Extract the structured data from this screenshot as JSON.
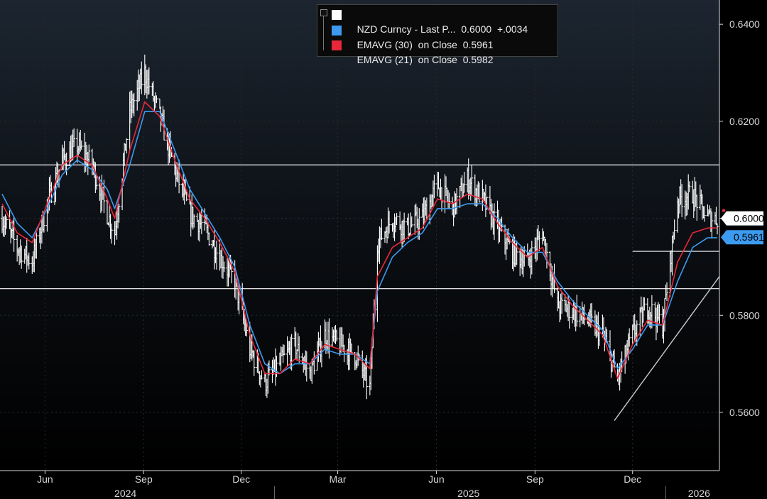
{
  "chart_data": {
    "type": "line",
    "title": "",
    "xlabel": "",
    "ylabel": "",
    "ylim": [
      0.548,
      0.645
    ],
    "yticks": [
      0.56,
      0.58,
      0.6,
      0.62,
      0.64
    ],
    "ytick_labels": [
      "0.5600",
      "0.5800",
      "0.6000",
      "0.6200",
      "0.6400"
    ],
    "x_axis": {
      "months": [
        {
          "label": "Jun",
          "date": "2024-06-01"
        },
        {
          "label": "Sep",
          "date": "2024-09-01"
        },
        {
          "label": "Dec",
          "date": "2024-12-01"
        },
        {
          "label": "Mar",
          "date": "2025-03-01"
        },
        {
          "label": "Jun",
          "date": "2025-06-01"
        },
        {
          "label": "Sep",
          "date": "2025-09-01"
        },
        {
          "label": "Dec",
          "date": "2025-12-01"
        }
      ],
      "years": [
        {
          "label": "2024",
          "date": "2024-08-15"
        },
        {
          "label": "2025",
          "date": "2025-07-01"
        },
        {
          "label": "2026",
          "date": "2026-02-01"
        }
      ],
      "range": [
        "2024-04-20",
        "2026-02-20"
      ]
    },
    "series": [
      {
        "name": "NZD Curncy - Last P...",
        "legend_value": "0.6000",
        "legend_change": "+.0034",
        "color": "#ffffff",
        "style": "ohlc-bars",
        "last_label": "0.6000",
        "x": [
          "2024-04-22",
          "2024-05-06",
          "2024-05-20",
          "2024-06-03",
          "2024-06-17",
          "2024-07-01",
          "2024-07-15",
          "2024-07-29",
          "2024-08-05",
          "2024-08-19",
          "2024-09-02",
          "2024-09-16",
          "2024-09-30",
          "2024-10-14",
          "2024-10-28",
          "2024-11-11",
          "2024-11-25",
          "2024-12-09",
          "2024-12-23",
          "2025-01-06",
          "2025-01-20",
          "2025-02-03",
          "2025-02-17",
          "2025-03-03",
          "2025-03-17",
          "2025-03-31",
          "2025-04-07",
          "2025-04-21",
          "2025-05-05",
          "2025-05-19",
          "2025-06-02",
          "2025-06-16",
          "2025-06-30",
          "2025-07-14",
          "2025-07-28",
          "2025-08-11",
          "2025-08-25",
          "2025-09-08",
          "2025-09-22",
          "2025-10-06",
          "2025-10-20",
          "2025-11-03",
          "2025-11-17",
          "2025-12-01",
          "2025-12-15",
          "2025-12-29",
          "2026-01-12",
          "2026-01-26",
          "2026-02-09",
          "2026-02-18"
        ],
        "y": [
          0.6,
          0.594,
          0.591,
          0.603,
          0.612,
          0.615,
          0.611,
          0.601,
          0.597,
          0.622,
          0.63,
          0.621,
          0.61,
          0.601,
          0.598,
          0.592,
          0.587,
          0.573,
          0.566,
          0.57,
          0.574,
          0.568,
          0.576,
          0.574,
          0.572,
          0.565,
          0.595,
          0.6,
          0.598,
          0.6,
          0.607,
          0.602,
          0.608,
          0.604,
          0.598,
          0.593,
          0.591,
          0.597,
          0.582,
          0.581,
          0.579,
          0.576,
          0.567,
          0.576,
          0.582,
          0.578,
          0.604,
          0.605,
          0.6,
          0.6
        ]
      },
      {
        "name": "EMAVG (30)  on Close",
        "legend_value": "0.5961",
        "color": "#3c9bf0",
        "last_label": "0.5961",
        "x": [
          "2024-04-22",
          "2024-05-06",
          "2024-05-20",
          "2024-06-03",
          "2024-06-17",
          "2024-07-01",
          "2024-07-15",
          "2024-07-29",
          "2024-08-05",
          "2024-08-19",
          "2024-09-02",
          "2024-09-16",
          "2024-09-30",
          "2024-10-14",
          "2024-10-28",
          "2024-11-11",
          "2024-11-25",
          "2024-12-09",
          "2024-12-23",
          "2025-01-06",
          "2025-01-20",
          "2025-02-03",
          "2025-02-17",
          "2025-03-03",
          "2025-03-17",
          "2025-03-31",
          "2025-04-07",
          "2025-04-21",
          "2025-05-05",
          "2025-05-19",
          "2025-06-02",
          "2025-06-16",
          "2025-06-30",
          "2025-07-14",
          "2025-07-28",
          "2025-08-11",
          "2025-08-25",
          "2025-09-08",
          "2025-09-22",
          "2025-10-06",
          "2025-10-20",
          "2025-11-03",
          "2025-11-17",
          "2025-12-01",
          "2025-12-15",
          "2025-12-29",
          "2026-01-12",
          "2026-01-26",
          "2026-02-09",
          "2026-02-18"
        ],
        "y": [
          0.605,
          0.599,
          0.596,
          0.602,
          0.609,
          0.612,
          0.61,
          0.606,
          0.602,
          0.611,
          0.622,
          0.622,
          0.614,
          0.606,
          0.601,
          0.596,
          0.59,
          0.578,
          0.57,
          0.568,
          0.57,
          0.57,
          0.573,
          0.572,
          0.572,
          0.57,
          0.585,
          0.592,
          0.595,
          0.597,
          0.602,
          0.602,
          0.603,
          0.603,
          0.6,
          0.596,
          0.593,
          0.593,
          0.587,
          0.583,
          0.58,
          0.577,
          0.569,
          0.573,
          0.578,
          0.578,
          0.587,
          0.594,
          0.596,
          0.596
        ]
      },
      {
        "name": "EMAVG (21)  on Close",
        "legend_value": "0.5982",
        "color": "#e8283a",
        "last_label": "",
        "x": [
          "2024-04-22",
          "2024-05-06",
          "2024-05-20",
          "2024-06-03",
          "2024-06-17",
          "2024-07-01",
          "2024-07-15",
          "2024-07-29",
          "2024-08-05",
          "2024-08-19",
          "2024-09-02",
          "2024-09-16",
          "2024-09-30",
          "2024-10-14",
          "2024-10-28",
          "2024-11-11",
          "2024-11-25",
          "2024-12-09",
          "2024-12-23",
          "2025-01-06",
          "2025-01-20",
          "2025-02-03",
          "2025-02-17",
          "2025-03-03",
          "2025-03-17",
          "2025-03-31",
          "2025-04-07",
          "2025-04-21",
          "2025-05-05",
          "2025-05-19",
          "2025-06-02",
          "2025-06-16",
          "2025-06-30",
          "2025-07-14",
          "2025-07-28",
          "2025-08-11",
          "2025-08-25",
          "2025-09-08",
          "2025-09-22",
          "2025-10-06",
          "2025-10-20",
          "2025-11-03",
          "2025-11-17",
          "2025-12-01",
          "2025-12-15",
          "2025-12-29",
          "2026-01-12",
          "2026-01-26",
          "2026-02-09",
          "2026-02-18"
        ],
        "y": [
          0.603,
          0.597,
          0.595,
          0.603,
          0.611,
          0.613,
          0.611,
          0.604,
          0.6,
          0.614,
          0.624,
          0.621,
          0.612,
          0.604,
          0.6,
          0.595,
          0.589,
          0.576,
          0.568,
          0.568,
          0.571,
          0.57,
          0.574,
          0.573,
          0.572,
          0.569,
          0.588,
          0.594,
          0.596,
          0.598,
          0.604,
          0.603,
          0.605,
          0.604,
          0.599,
          0.595,
          0.592,
          0.594,
          0.586,
          0.582,
          0.579,
          0.576,
          0.567,
          0.574,
          0.579,
          0.578,
          0.591,
          0.597,
          0.598,
          0.598
        ]
      }
    ],
    "reference_lines": [
      {
        "type": "horizontal",
        "y": 0.611,
        "from": "2024-04-20",
        "to": "2026-02-20",
        "color": "#ffffff"
      },
      {
        "type": "horizontal",
        "y": 0.5855,
        "from": "2024-04-20",
        "to": "2026-02-20",
        "color": "#ffffff"
      },
      {
        "type": "horizontal",
        "y": 0.5932,
        "from": "2025-12-01",
        "to": "2026-02-20",
        "color": "#ffffff"
      },
      {
        "type": "trend",
        "points": [
          [
            "2025-11-14",
            0.5583
          ],
          [
            "2026-02-20",
            0.588
          ]
        ],
        "color": "#cccccc"
      }
    ],
    "grid": true,
    "legend_position": "top"
  },
  "colors": {
    "background": "#000000",
    "price": "#ffffff",
    "ema30": "#3c9bf0",
    "ema21": "#e8283a",
    "grid": "#2a2a2a",
    "axis": "#d8d8d8"
  }
}
